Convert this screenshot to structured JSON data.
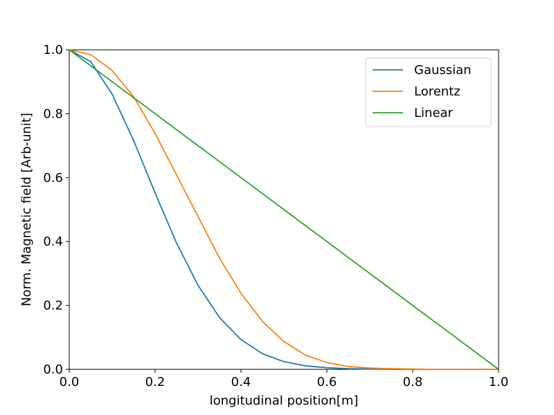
{
  "chart_data": {
    "type": "line",
    "title": "",
    "xlabel": "longitudinal position[m]",
    "ylabel": "Norm. Magnetic field [Arb-unit]",
    "xlim": [
      0.0,
      1.0
    ],
    "ylim": [
      0.0,
      1.0
    ],
    "xticks": [
      "0.0",
      "0.2",
      "0.4",
      "0.6",
      "0.8",
      "1.0"
    ],
    "yticks": [
      "0.0",
      "0.2",
      "0.4",
      "0.6",
      "0.8",
      "1.0"
    ],
    "grid": false,
    "legend_position": "top-right",
    "x": [
      0.0,
      0.05,
      0.1,
      0.15,
      0.2,
      0.25,
      0.3,
      0.35,
      0.4,
      0.45,
      0.5,
      0.55,
      0.6,
      0.65,
      0.7,
      0.75,
      0.8,
      0.85,
      0.9,
      0.95,
      1.0
    ],
    "series": [
      {
        "name": "Gaussian",
        "color": "#1f77b4",
        "values": [
          1.0,
          0.963,
          0.861,
          0.716,
          0.552,
          0.395,
          0.263,
          0.162,
          0.093,
          0.049,
          0.024,
          0.011,
          0.005,
          0.002,
          0.001,
          0.0,
          0.0,
          0.0,
          0.0,
          0.0,
          0.0
        ]
      },
      {
        "name": "Lorentz",
        "color": "#ff7f0e",
        "values": [
          1.0,
          0.985,
          0.935,
          0.853,
          0.738,
          0.608,
          0.478,
          0.348,
          0.238,
          0.15,
          0.087,
          0.045,
          0.021,
          0.009,
          0.004,
          0.002,
          0.001,
          0.0,
          0.0,
          0.0,
          0.0
        ]
      },
      {
        "name": "Linear",
        "color": "#2ca02c",
        "values": [
          1.0,
          0.95,
          0.9,
          0.85,
          0.8,
          0.75,
          0.7,
          0.65,
          0.6,
          0.55,
          0.5,
          0.45,
          0.4,
          0.35,
          0.3,
          0.25,
          0.2,
          0.15,
          0.1,
          0.05,
          0.0
        ]
      }
    ]
  }
}
